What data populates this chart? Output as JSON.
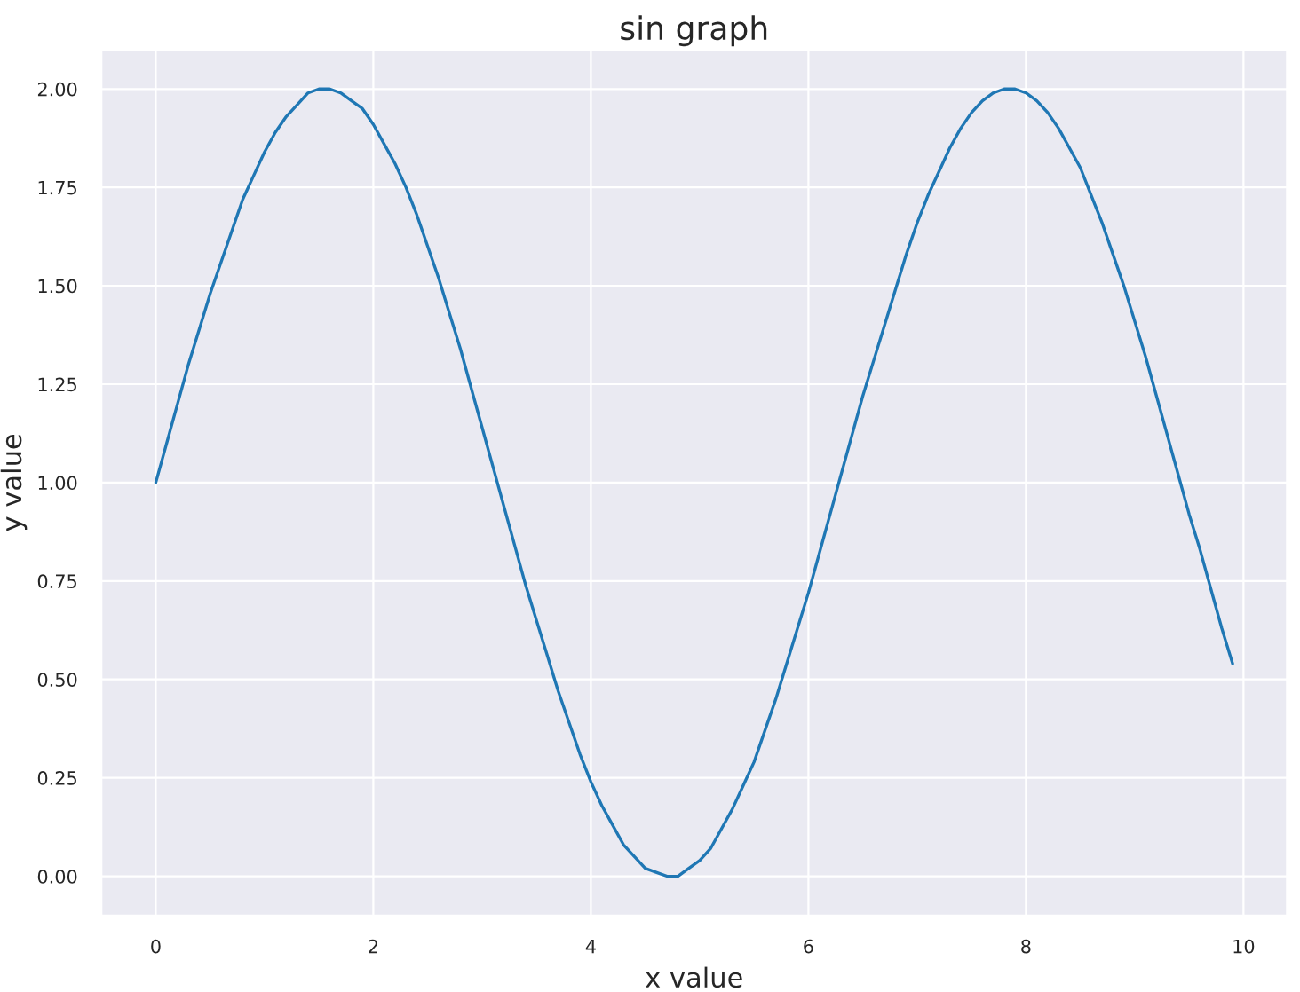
{
  "chart_data": {
    "type": "line",
    "title": "sin graph",
    "xlabel": "x value",
    "ylabel": "y value",
    "x": [
      0,
      0.1,
      0.2,
      0.3,
      0.4,
      0.5,
      0.6,
      0.7,
      0.8,
      0.9,
      1.0,
      1.1,
      1.2,
      1.3,
      1.4,
      1.5,
      1.6,
      1.7,
      1.8,
      1.9,
      2.0,
      2.1,
      2.2,
      2.3,
      2.4,
      2.5,
      2.6,
      2.7,
      2.8,
      2.9,
      3.0,
      3.1,
      3.2,
      3.3,
      3.4,
      3.5,
      3.6,
      3.7,
      3.8,
      3.9,
      4.0,
      4.1,
      4.2,
      4.3,
      4.4,
      4.5,
      4.6,
      4.7,
      4.8,
      4.9,
      5.0,
      5.1,
      5.2,
      5.3,
      5.4,
      5.5,
      5.6,
      5.7,
      5.8,
      5.9,
      6.0,
      6.1,
      6.2,
      6.3,
      6.4,
      6.5,
      6.6,
      6.7,
      6.8,
      6.9,
      7.0,
      7.1,
      7.2,
      7.3,
      7.4,
      7.5,
      7.6,
      7.7,
      7.8,
      7.9,
      8.0,
      8.1,
      8.2,
      8.3,
      8.4,
      8.5,
      8.6,
      8.7,
      8.8,
      8.9,
      9.0,
      9.1,
      9.2,
      9.3,
      9.4,
      9.5,
      9.6,
      9.7,
      9.8,
      9.9
    ],
    "series": [
      {
        "color": "#1f77b4",
        "values": [
          1.0,
          1.1,
          1.2,
          1.3,
          1.39,
          1.48,
          1.56,
          1.64,
          1.72,
          1.78,
          1.84,
          1.89,
          1.93,
          1.96,
          1.99,
          2.0,
          2.0,
          1.99,
          1.97,
          1.95,
          1.91,
          1.86,
          1.81,
          1.75,
          1.68,
          1.6,
          1.52,
          1.43,
          1.34,
          1.24,
          1.14,
          1.04,
          0.94,
          0.84,
          0.74,
          0.65,
          0.56,
          0.47,
          0.39,
          0.31,
          0.24,
          0.18,
          0.13,
          0.08,
          0.05,
          0.02,
          0.01,
          0.0,
          0.0,
          0.02,
          0.04,
          0.07,
          0.12,
          0.17,
          0.23,
          0.29,
          0.37,
          0.45,
          0.54,
          0.63,
          0.72,
          0.82,
          0.92,
          1.02,
          1.12,
          1.22,
          1.31,
          1.4,
          1.49,
          1.58,
          1.66,
          1.73,
          1.79,
          1.85,
          1.9,
          1.94,
          1.97,
          1.99,
          2.0,
          2.0,
          1.99,
          1.97,
          1.94,
          1.9,
          1.85,
          1.8,
          1.73,
          1.66,
          1.58,
          1.5,
          1.41,
          1.32,
          1.22,
          1.12,
          1.02,
          0.92,
          0.83,
          0.73,
          0.63,
          0.54
        ]
      }
    ],
    "xlim": [
      -0.5,
      10.4
    ],
    "ylim": [
      -0.1,
      2.1
    ],
    "xticks": [
      0,
      2,
      4,
      6,
      8,
      10
    ],
    "yticks": [
      {
        "value": 0,
        "label": "0.00"
      },
      {
        "value": 0.25,
        "label": "0.25"
      },
      {
        "value": 0.5,
        "label": "0.50"
      },
      {
        "value": 0.75,
        "label": "0.75"
      },
      {
        "value": 1,
        "label": "1.00"
      },
      {
        "value": 1.25,
        "label": "1.25"
      },
      {
        "value": 1.5,
        "label": "1.50"
      },
      {
        "value": 1.75,
        "label": "1.75"
      },
      {
        "value": 2,
        "label": "2.00"
      }
    ],
    "grid": true
  }
}
